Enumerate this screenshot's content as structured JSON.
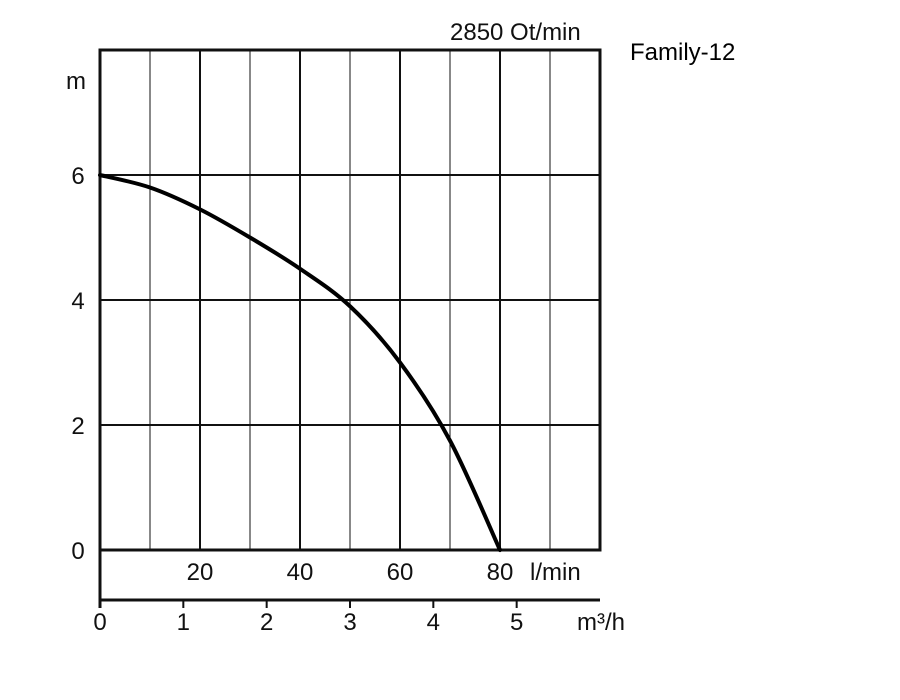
{
  "speed_label": "2850 Ot/min",
  "model_label": "Family-12",
  "chart_data": {
    "type": "line",
    "title": "",
    "ylabel": "m",
    "xlabel_flow_lmin": "l/min",
    "xlabel_flow_m3h": "m³/h",
    "ylim": [
      0,
      8
    ],
    "xlim_lmin": [
      0,
      100
    ],
    "xlim_m3h": [
      0,
      6
    ],
    "grid": true,
    "y_ticks": [
      "0",
      "2",
      "4",
      "6"
    ],
    "x_ticks_lmin": [
      "20",
      "40",
      "60",
      "80"
    ],
    "x_ticks_m3h": [
      "0",
      "1",
      "2",
      "3",
      "4",
      "5"
    ],
    "series": [
      {
        "x_lmin": [
          0,
          10,
          20,
          30,
          40,
          50,
          60,
          70,
          80
        ],
        "y_m": [
          6.0,
          5.8,
          5.45,
          5.0,
          4.5,
          3.9,
          3.0,
          1.75,
          0.0
        ]
      }
    ]
  }
}
